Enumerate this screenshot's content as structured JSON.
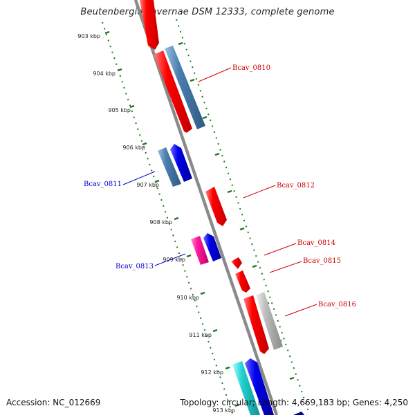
{
  "title": "Beutenbergia cavernae DSM 12333, complete genome",
  "footer": {
    "accession": "Accession: NC_012669",
    "summary": "Topology: circular; Length: 4,669,183 bp; Genes: 4,250"
  },
  "colors": {
    "backbone": "#8a8a8a",
    "tick_green": "#1a7a1a",
    "gene_red": "#ff0000",
    "gene_blue": "#0000ee",
    "gene_steelblue": "#4a7fb0",
    "gene_magenta": "#ff1aa0",
    "gene_cyan": "#22d0d0",
    "gene_gray": "#bdbdbd",
    "label_red": "#d00000",
    "label_blue": "#0000cc"
  },
  "ticks": [
    "903 kbp",
    "904 kbp",
    "905 kbp",
    "906 kbp",
    "907 kbp",
    "908 kbp",
    "909 kbp",
    "910 kbp",
    "911 kbp",
    "912 kbp",
    "913 kbp"
  ],
  "gene_labels": [
    {
      "text": "Bcav_0810",
      "color": "red"
    },
    {
      "text": "Bcav_0811",
      "color": "blue"
    },
    {
      "text": "Bcav_0812",
      "color": "red"
    },
    {
      "text": "Bcav_0813",
      "color": "blue"
    },
    {
      "text": "Bcav_0814",
      "color": "red"
    },
    {
      "text": "Bcav_0815",
      "color": "red"
    },
    {
      "text": "Bcav_0816",
      "color": "red"
    }
  ]
}
